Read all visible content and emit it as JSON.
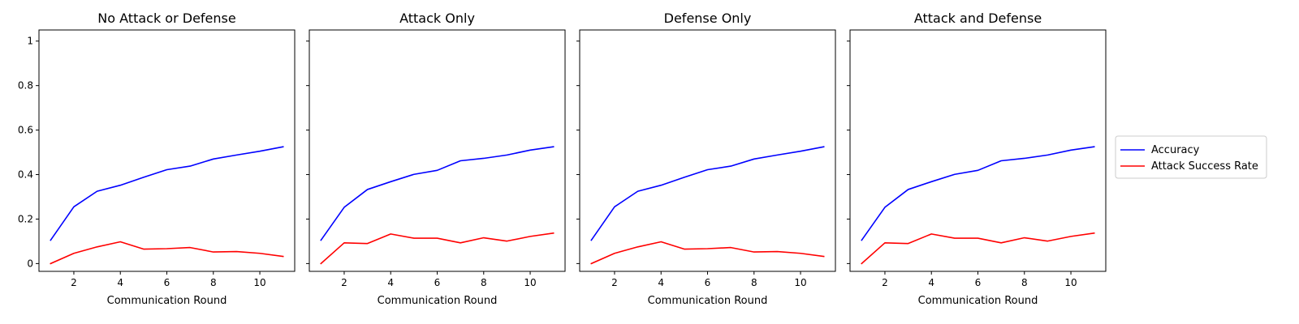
{
  "chart_data": [
    {
      "type": "line",
      "title": "No Attack or Defense",
      "xlabel": "Communication Round",
      "ylabel": "",
      "x": [
        1,
        2,
        3,
        4,
        5,
        6,
        7,
        8,
        9,
        10,
        11
      ],
      "xlim": [
        0.5,
        11.5
      ],
      "ylim": [
        -0.035,
        1.05
      ],
      "xticks": [
        2,
        4,
        6,
        8,
        10
      ],
      "yticks": [
        0.0,
        0.2,
        0.4,
        0.6,
        0.8,
        1.0
      ],
      "show_y_tick_labels": true,
      "grid": false,
      "series": [
        {
          "name": "Accuracy",
          "color": "#0000ff",
          "values": [
            0.105,
            0.255,
            0.325,
            0.352,
            0.388,
            0.422,
            0.438,
            0.47,
            0.488,
            0.505,
            0.525
          ]
        },
        {
          "name": "Attack Success Rate",
          "color": "#ff0000",
          "values": [
            0.0,
            0.046,
            0.075,
            0.098,
            0.065,
            0.067,
            0.072,
            0.052,
            0.054,
            0.046,
            0.032
          ]
        }
      ]
    },
    {
      "type": "line",
      "title": "Attack Only",
      "xlabel": "Communication Round",
      "ylabel": "",
      "x": [
        1,
        2,
        3,
        4,
        5,
        6,
        7,
        8,
        9,
        10,
        11
      ],
      "xlim": [
        0.5,
        11.5
      ],
      "ylim": [
        -0.035,
        1.05
      ],
      "xticks": [
        2,
        4,
        6,
        8,
        10
      ],
      "yticks": [
        0.0,
        0.2,
        0.4,
        0.6,
        0.8,
        1.0
      ],
      "show_y_tick_labels": false,
      "grid": false,
      "series": [
        {
          "name": "Accuracy",
          "color": "#0000ff",
          "values": [
            0.105,
            0.253,
            0.333,
            0.368,
            0.401,
            0.419,
            0.462,
            0.473,
            0.488,
            0.51,
            0.525
          ]
        },
        {
          "name": "Attack Success Rate",
          "color": "#ff0000",
          "values": [
            0.0,
            0.093,
            0.09,
            0.133,
            0.114,
            0.114,
            0.093,
            0.116,
            0.101,
            0.122,
            0.137
          ]
        }
      ]
    },
    {
      "type": "line",
      "title": "Defense Only",
      "xlabel": "Communication Round",
      "ylabel": "",
      "x": [
        1,
        2,
        3,
        4,
        5,
        6,
        7,
        8,
        9,
        10,
        11
      ],
      "xlim": [
        0.5,
        11.5
      ],
      "ylim": [
        -0.035,
        1.05
      ],
      "xticks": [
        2,
        4,
        6,
        8,
        10
      ],
      "yticks": [
        0.0,
        0.2,
        0.4,
        0.6,
        0.8,
        1.0
      ],
      "show_y_tick_labels": false,
      "grid": false,
      "series": [
        {
          "name": "Accuracy",
          "color": "#0000ff",
          "values": [
            0.105,
            0.255,
            0.325,
            0.352,
            0.388,
            0.422,
            0.438,
            0.47,
            0.488,
            0.505,
            0.525
          ]
        },
        {
          "name": "Attack Success Rate",
          "color": "#ff0000",
          "values": [
            0.0,
            0.046,
            0.075,
            0.098,
            0.065,
            0.067,
            0.072,
            0.052,
            0.054,
            0.046,
            0.032
          ]
        }
      ]
    },
    {
      "type": "line",
      "title": "Attack and Defense",
      "xlabel": "Communication Round",
      "ylabel": "",
      "x": [
        1,
        2,
        3,
        4,
        5,
        6,
        7,
        8,
        9,
        10,
        11
      ],
      "xlim": [
        0.5,
        11.5
      ],
      "ylim": [
        -0.035,
        1.05
      ],
      "xticks": [
        2,
        4,
        6,
        8,
        10
      ],
      "yticks": [
        0.0,
        0.2,
        0.4,
        0.6,
        0.8,
        1.0
      ],
      "show_y_tick_labels": false,
      "grid": false,
      "series": [
        {
          "name": "Accuracy",
          "color": "#0000ff",
          "values": [
            0.105,
            0.253,
            0.333,
            0.368,
            0.401,
            0.419,
            0.462,
            0.473,
            0.488,
            0.51,
            0.525
          ]
        },
        {
          "name": "Attack Success Rate",
          "color": "#ff0000",
          "values": [
            0.0,
            0.093,
            0.09,
            0.133,
            0.114,
            0.114,
            0.093,
            0.116,
            0.101,
            0.122,
            0.137
          ]
        }
      ]
    }
  ],
  "legend": {
    "placement": "right",
    "entries": [
      {
        "label": "Accuracy",
        "color": "#0000ff"
      },
      {
        "label": "Attack Success Rate",
        "color": "#ff0000"
      }
    ]
  }
}
